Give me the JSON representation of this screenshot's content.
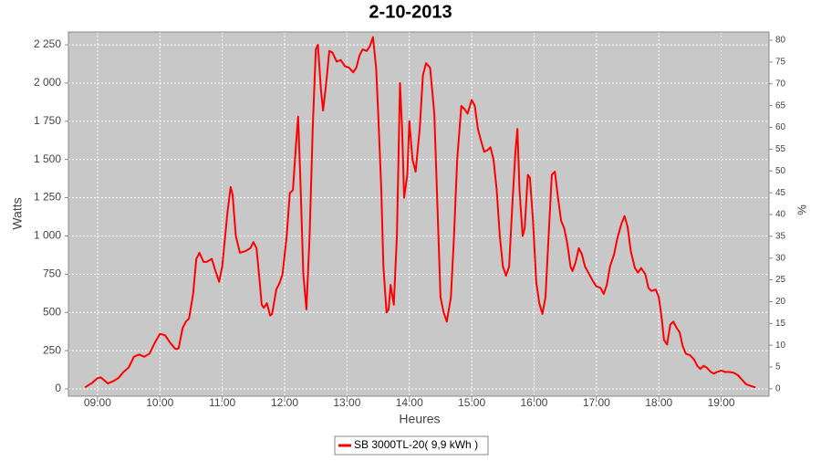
{
  "chart_data": {
    "type": "line",
    "title": "2-10-2013",
    "x_label": "Heures",
    "y_label": "Watts",
    "y2_label": "%",
    "x": [
      "08:48",
      "08:55",
      "09:00",
      "09:03",
      "09:05",
      "09:10",
      "09:15",
      "09:20",
      "09:25",
      "09:30",
      "09:35",
      "09:40",
      "09:45",
      "09:50",
      "09:55",
      "10:00",
      "10:05",
      "10:10",
      "10:15",
      "10:18",
      "10:22",
      "10:25",
      "10:28",
      "10:32",
      "10:35",
      "10:38",
      "10:42",
      "10:45",
      "10:50",
      "10:53",
      "10:57",
      "11:00",
      "11:05",
      "11:08",
      "11:10",
      "11:13",
      "11:17",
      "11:22",
      "11:27",
      "11:30",
      "11:33",
      "11:36",
      "11:38",
      "11:40",
      "11:43",
      "11:46",
      "11:48",
      "11:52",
      "11:55",
      "11:58",
      "12:02",
      "12:05",
      "12:08",
      "12:11",
      "12:13",
      "12:15",
      "12:18",
      "12:21",
      "12:24",
      "12:27",
      "12:30",
      "12:32",
      "12:35",
      "12:37",
      "12:40",
      "12:43",
      "12:46",
      "12:50",
      "12:54",
      "12:58",
      "13:02",
      "13:06",
      "13:09",
      "13:12",
      "13:15",
      "13:19",
      "13:22",
      "13:25",
      "13:28",
      "13:30",
      "13:33",
      "13:35",
      "13:38",
      "13:40",
      "13:42",
      "13:45",
      "13:48",
      "13:51",
      "13:53",
      "13:55",
      "13:58",
      "14:00",
      "14:03",
      "14:06",
      "14:10",
      "14:13",
      "14:16",
      "14:20",
      "14:24",
      "14:27",
      "14:30",
      "14:33",
      "14:36",
      "14:40",
      "14:43",
      "14:46",
      "14:50",
      "14:53",
      "14:56",
      "15:00",
      "15:03",
      "15:06",
      "15:09",
      "15:12",
      "15:15",
      "15:18",
      "15:21",
      "15:24",
      "15:27",
      "15:30",
      "15:33",
      "15:36",
      "15:39",
      "15:42",
      "15:44",
      "15:46",
      "15:49",
      "15:51",
      "15:54",
      "15:56",
      "15:59",
      "16:02",
      "16:05",
      "16:08",
      "16:11",
      "16:14",
      "16:17",
      "16:20",
      "16:23",
      "16:26",
      "16:29",
      "16:32",
      "16:35",
      "16:37",
      "16:40",
      "16:43",
      "16:46",
      "16:49",
      "16:53",
      "16:57",
      "17:00",
      "17:04",
      "17:07",
      "17:10",
      "17:13",
      "17:17",
      "17:20",
      "17:24",
      "17:27",
      "17:30",
      "17:33",
      "17:37",
      "17:40",
      "17:43",
      "17:47",
      "17:50",
      "17:53",
      "17:57",
      "18:00",
      "18:03",
      "18:05",
      "18:08",
      "18:11",
      "18:14",
      "18:17",
      "18:20",
      "18:23",
      "18:26",
      "18:30",
      "18:34",
      "18:37",
      "18:40",
      "18:43",
      "18:46",
      "18:50",
      "18:53",
      "18:56",
      "19:00",
      "19:04",
      "19:08",
      "19:12",
      "19:16",
      "19:20",
      "19:24",
      "19:30",
      "19:33"
    ],
    "series": [
      {
        "name": "SB 3000TL-20( 9,9 kWh )",
        "color": "#ff0000",
        "values": [
          10,
          40,
          70,
          75,
          65,
          35,
          50,
          70,
          110,
          140,
          210,
          225,
          210,
          230,
          300,
          360,
          350,
          300,
          260,
          265,
          400,
          440,
          460,
          620,
          850,
          890,
          830,
          830,
          850,
          780,
          700,
          800,
          1150,
          1320,
          1270,
          1000,
          890,
          900,
          920,
          960,
          920,
          700,
          550,
          530,
          560,
          480,
          490,
          650,
          690,
          750,
          1000,
          1280,
          1300,
          1600,
          1780,
          1400,
          750,
          520,
          1000,
          1700,
          2220,
          2250,
          1950,
          1820,
          2000,
          2210,
          2200,
          2140,
          2150,
          2110,
          2100,
          2070,
          2100,
          2180,
          2220,
          2210,
          2240,
          2300,
          2100,
          1800,
          1300,
          800,
          500,
          520,
          680,
          550,
          1000,
          2000,
          1700,
          1250,
          1400,
          1750,
          1500,
          1420,
          1700,
          2050,
          2130,
          2100,
          1800,
          1200,
          600,
          500,
          440,
          600,
          1000,
          1500,
          1850,
          1830,
          1800,
          1890,
          1850,
          1700,
          1620,
          1550,
          1560,
          1580,
          1500,
          1300,
          1000,
          800,
          740,
          800,
          1200,
          1550,
          1700,
          1300,
          1000,
          1050,
          1400,
          1380,
          1100,
          700,
          560,
          490,
          600,
          1000,
          1400,
          1420,
          1250,
          1100,
          1050,
          950,
          800,
          770,
          830,
          920,
          880,
          800,
          750,
          700,
          670,
          660,
          620,
          680,
          800,
          880,
          980,
          1080,
          1130,
          1060,
          900,
          790,
          760,
          790,
          750,
          660,
          640,
          650,
          600,
          450,
          320,
          290,
          420,
          440,
          400,
          370,
          280,
          230,
          220,
          190,
          150,
          130,
          150,
          140,
          110,
          100,
          110,
          120,
          110,
          110,
          105,
          90,
          60,
          30,
          15,
          10
        ]
      }
    ],
    "xlim": [
      "08:32",
      "19:46"
    ],
    "xticks": [
      "09:00",
      "10:00",
      "11:00",
      "12:00",
      "13:00",
      "14:00",
      "15:00",
      "16:00",
      "17:00",
      "18:00",
      "19:00"
    ],
    "ylim": [
      -48,
      2334
    ],
    "yticks": [
      0,
      250,
      500,
      750,
      {
        "value": 1000,
        "label": "1 000"
      },
      {
        "value": 1250,
        "label": "1 250"
      },
      {
        "value": 1500,
        "label": "1 500"
      },
      {
        "value": 1750,
        "label": "1 750"
      },
      {
        "value": 2000,
        "label": "2 000"
      },
      {
        "value": 2250,
        "label": "2 250"
      }
    ],
    "y2lim": [
      -1.7,
      81.9
    ],
    "y2ticks": [
      0,
      5,
      10,
      15,
      20,
      25,
      30,
      35,
      40,
      45,
      50,
      55,
      60,
      65,
      70,
      75,
      80
    ],
    "grid": true,
    "legend": "bottom"
  }
}
